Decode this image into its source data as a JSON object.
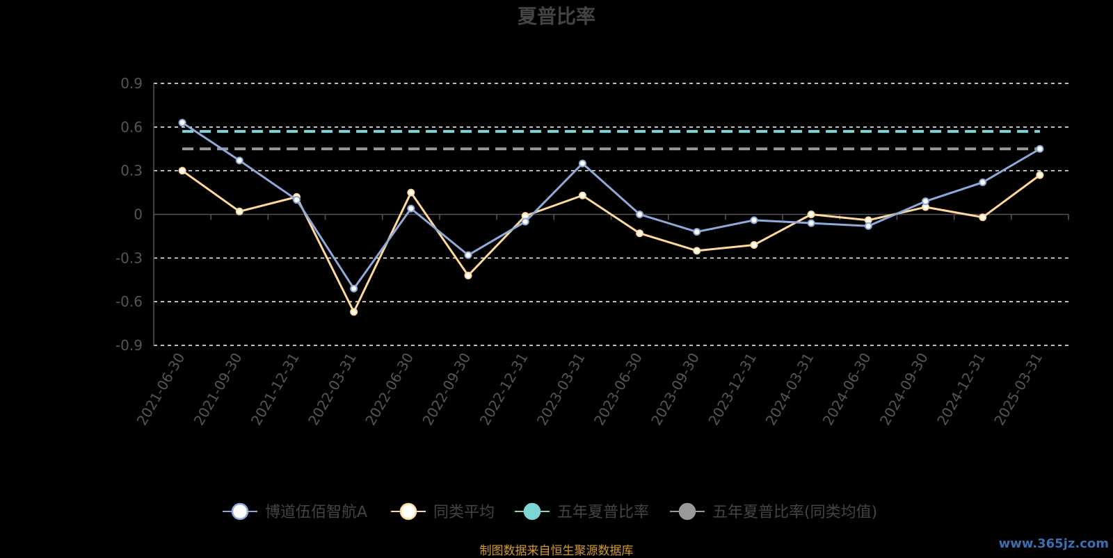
{
  "chart_data": {
    "type": "line",
    "title": "夏普比率",
    "categories": [
      "2021-06-30",
      "2021-09-30",
      "2021-12-31",
      "2022-03-31",
      "2022-06-30",
      "2022-09-30",
      "2022-12-31",
      "2023-03-31",
      "2023-06-30",
      "2023-09-30",
      "2023-12-31",
      "2024-03-31",
      "2024-06-30",
      "2024-09-30",
      "2024-12-31",
      "2025-03-31"
    ],
    "y_ticks": [
      "0.9",
      "0.6",
      "0.3",
      "0",
      "-0.3",
      "-0.6",
      "-0.9"
    ],
    "ylim": [
      -0.9,
      0.9
    ],
    "grid": true,
    "legend_position": "bottom",
    "series": [
      {
        "name": "博道伍佰智航A",
        "color": "#8fa9d8",
        "values": [
          0.63,
          0.37,
          0.1,
          -0.51,
          0.04,
          -0.28,
          -0.05,
          0.35,
          0.0,
          -0.12,
          -0.04,
          -0.06,
          -0.08,
          0.09,
          0.22,
          0.45
        ]
      },
      {
        "name": "同类平均",
        "color": "#ffd89a",
        "values": [
          0.3,
          0.02,
          0.12,
          -0.67,
          0.15,
          -0.42,
          -0.01,
          0.13,
          -0.13,
          -0.25,
          -0.21,
          0.0,
          -0.04,
          0.05,
          -0.02,
          0.27
        ]
      }
    ],
    "reference_lines": [
      {
        "name": "五年夏普比率",
        "color": "#7dd6d6",
        "value": 0.57
      },
      {
        "name": "五年夏普比率(同类均值)",
        "color": "#999999",
        "value": 0.45
      }
    ]
  },
  "footer": {
    "source_note": "制图数据来自恒生聚源数据库",
    "watermark": "www.365jz.com"
  }
}
